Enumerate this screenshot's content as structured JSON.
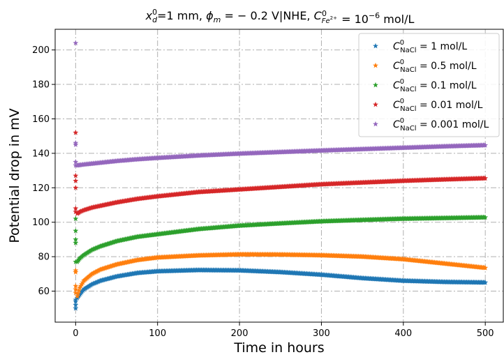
{
  "chart_data": {
    "type": "scatter",
    "title": {
      "pre": "x",
      "pre_sub": "d",
      "pre_sup": "0",
      "mid1": "=1 mm, ",
      "phi": "ϕ",
      "phi_sub": "m",
      "mid2": " = − 0.2 V|NHE, ",
      "c": "C",
      "c_sub": "Fe",
      "c_sub_sup": "2+",
      "c_sup": "0",
      "mid3": " = 10",
      "exp": "−6",
      "unit": " mol/L"
    },
    "xlabel": "Time in hours",
    "ylabel": "Potential drop in mV",
    "xlim": [
      -25,
      522
    ],
    "ylim": [
      42,
      212
    ],
    "xticks": [
      "0",
      "100",
      "200",
      "300",
      "400",
      "500"
    ],
    "yticks": [
      "60",
      "80",
      "100",
      "120",
      "140",
      "160",
      "180",
      "200"
    ],
    "grid": true,
    "legend_position": "top-right",
    "marker": "star",
    "series": [
      {
        "name": "1 mol/L",
        "sub": "NaCl",
        "color": "#1f77b4",
        "points": [
          [
            0,
            50
          ],
          [
            0,
            52
          ],
          [
            0,
            54
          ],
          [
            0,
            55
          ],
          [
            2,
            56
          ],
          [
            5,
            58
          ],
          [
            10,
            61
          ],
          [
            20,
            64
          ],
          [
            30,
            66
          ],
          [
            50,
            68.5
          ],
          [
            75,
            70.5
          ],
          [
            100,
            71.5
          ],
          [
            150,
            72.2
          ],
          [
            200,
            72
          ],
          [
            250,
            71
          ],
          [
            300,
            69.5
          ],
          [
            350,
            67.5
          ],
          [
            400,
            66
          ],
          [
            450,
            65.3
          ],
          [
            500,
            65
          ]
        ]
      },
      {
        "name": "0.5 mol/L",
        "sub": "NaCl",
        "color": "#ff7f0e",
        "points": [
          [
            0,
            59
          ],
          [
            0,
            61
          ],
          [
            0,
            63
          ],
          [
            0,
            71
          ],
          [
            0,
            72
          ],
          [
            2,
            57
          ],
          [
            5,
            62
          ],
          [
            10,
            66
          ],
          [
            20,
            70
          ],
          [
            30,
            72.5
          ],
          [
            50,
            75.5
          ],
          [
            75,
            78
          ],
          [
            100,
            79.5
          ],
          [
            150,
            80.7
          ],
          [
            200,
            81.3
          ],
          [
            250,
            81.2
          ],
          [
            300,
            80.8
          ],
          [
            350,
            80
          ],
          [
            400,
            78.5
          ],
          [
            450,
            76
          ],
          [
            500,
            73.5
          ]
        ]
      },
      {
        "name": "0.1 mol/L",
        "sub": "NaCl",
        "color": "#2ca02c",
        "points": [
          [
            0,
            77
          ],
          [
            0,
            88
          ],
          [
            0,
            90
          ],
          [
            0,
            95
          ],
          [
            0,
            102
          ],
          [
            2,
            77
          ],
          [
            5,
            79
          ],
          [
            10,
            81
          ],
          [
            20,
            84
          ],
          [
            30,
            86
          ],
          [
            50,
            89
          ],
          [
            75,
            91.5
          ],
          [
            100,
            93
          ],
          [
            150,
            96
          ],
          [
            200,
            98
          ],
          [
            250,
            99.3
          ],
          [
            300,
            100.5
          ],
          [
            350,
            101.3
          ],
          [
            400,
            102
          ],
          [
            450,
            102.4
          ],
          [
            500,
            102.8
          ]
        ]
      },
      {
        "name": "0.01 mol/L",
        "sub": "NaCl",
        "color": "#d62728",
        "points": [
          [
            0,
            106
          ],
          [
            0,
            108
          ],
          [
            0,
            120
          ],
          [
            0,
            124
          ],
          [
            0,
            127
          ],
          [
            0,
            152
          ],
          [
            2,
            105
          ],
          [
            5,
            106
          ],
          [
            10,
            107
          ],
          [
            20,
            108.5
          ],
          [
            30,
            109.5
          ],
          [
            50,
            111.5
          ],
          [
            75,
            113.5
          ],
          [
            100,
            115
          ],
          [
            150,
            117.5
          ],
          [
            200,
            119
          ],
          [
            250,
            120.5
          ],
          [
            300,
            122
          ],
          [
            350,
            123
          ],
          [
            400,
            124
          ],
          [
            450,
            124.8
          ],
          [
            500,
            125.5
          ]
        ]
      },
      {
        "name": "0.001 mol/L",
        "sub": "NaCl",
        "color": "#9467bd",
        "points": [
          [
            0,
            133
          ],
          [
            0,
            135
          ],
          [
            0,
            145
          ],
          [
            0,
            146
          ],
          [
            0,
            204
          ],
          [
            2,
            133
          ],
          [
            5,
            133.2
          ],
          [
            10,
            133.5
          ],
          [
            20,
            134
          ],
          [
            30,
            134.5
          ],
          [
            50,
            135.5
          ],
          [
            75,
            136.5
          ],
          [
            100,
            137.3
          ],
          [
            150,
            138.7
          ],
          [
            200,
            139.8
          ],
          [
            250,
            140.7
          ],
          [
            300,
            141.6
          ],
          [
            350,
            142.4
          ],
          [
            400,
            143.2
          ],
          [
            450,
            144
          ],
          [
            500,
            144.7
          ]
        ]
      }
    ]
  }
}
